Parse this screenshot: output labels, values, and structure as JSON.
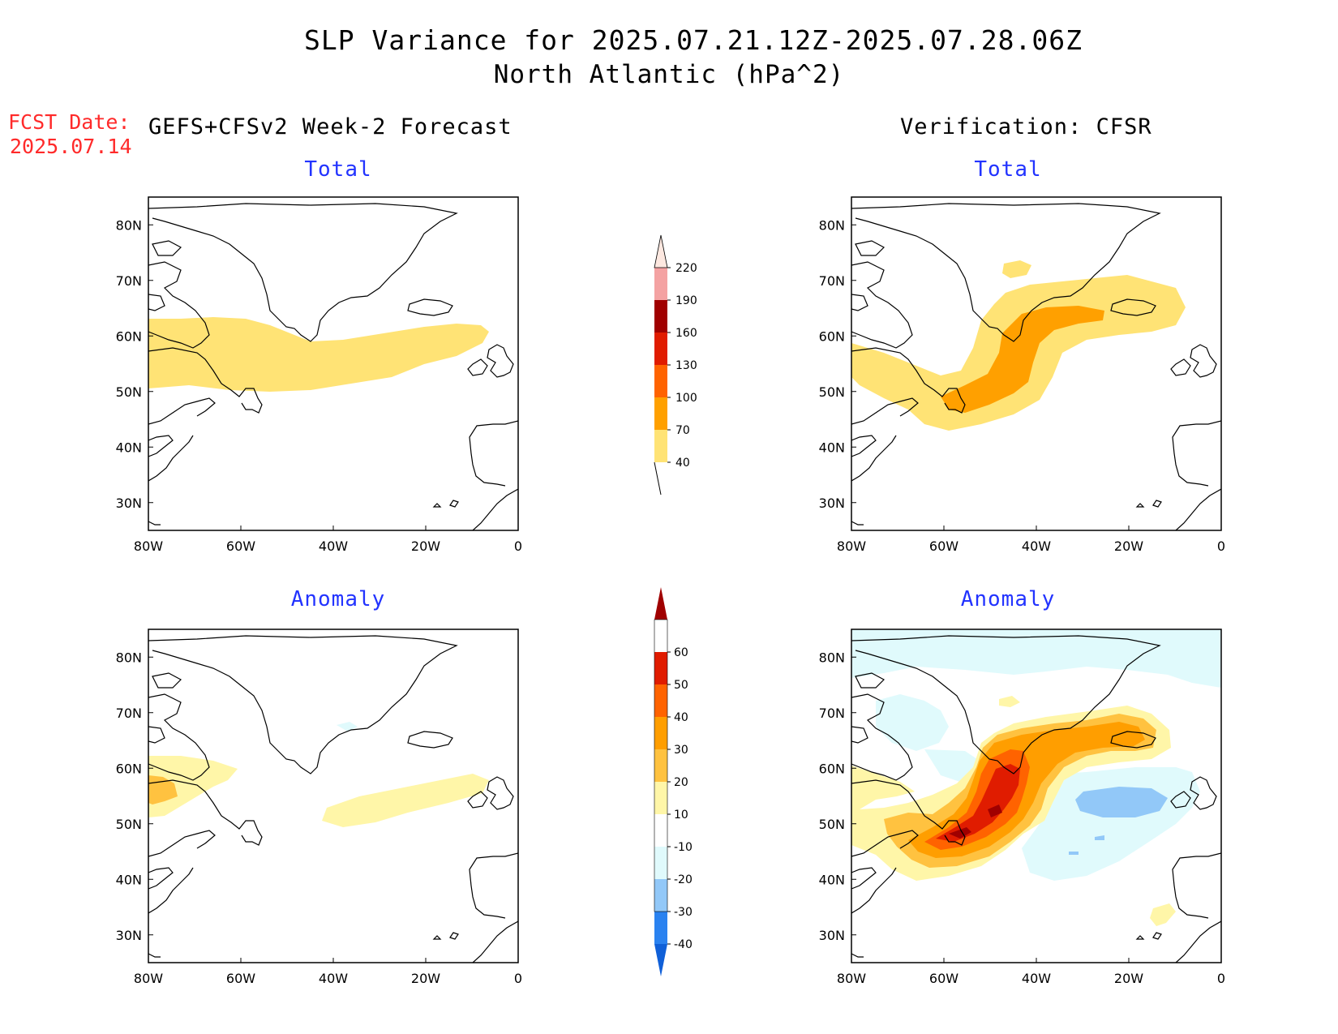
{
  "title_line1": "SLP Variance for 2025.07.21.12Z-2025.07.28.06Z",
  "title_line2": "North Atlantic (hPa^2)",
  "fcst_label": "FCST Date:",
  "fcst_date": "2025.07.14",
  "left_heading": "GEFS+CFSv2 Week-2 Forecast",
  "right_heading": "Verification: CFSR",
  "panel_titles": {
    "forecast_total": "Total",
    "verification_total": "Total",
    "forecast_anomaly": "Anomaly",
    "verification_anomaly": "Anomaly"
  },
  "x_ticks": [
    "80W",
    "60W",
    "40W",
    "20W",
    "0"
  ],
  "y_ticks": [
    "80N",
    "70N",
    "60N",
    "50N",
    "40N",
    "30N"
  ],
  "map_extent": {
    "lon": [
      -80,
      0
    ],
    "lat": [
      25,
      85
    ]
  },
  "total_colorbar": {
    "levels": [
      "40",
      "70",
      "100",
      "130",
      "160",
      "190",
      "220"
    ],
    "colors": [
      "#ffe375",
      "#ffa000",
      "#ff6300",
      "#e01c00",
      "#a00000",
      "#f4a2a2",
      "#fde8e0"
    ]
  },
  "anomaly_colorbar": {
    "levels": [
      "-40",
      "-30",
      "-20",
      "-10",
      "10",
      "20",
      "30",
      "40",
      "50",
      "60"
    ],
    "colors": [
      "#1060d8",
      "#2a82f0",
      "#92c8f8",
      "#e0fafc",
      "#ffffff",
      "#fff6a8",
      "#ffc240",
      "#ff9e00",
      "#ff6300",
      "#e01c00",
      "#a00000"
    ]
  }
}
